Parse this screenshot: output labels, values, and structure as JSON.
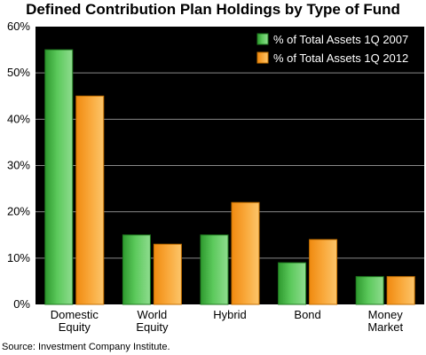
{
  "chart_data": {
    "type": "bar",
    "title": "Defined Contribution Plan Holdings by Type of Fund",
    "categories": [
      [
        "Domestic",
        "Equity"
      ],
      [
        "World",
        "Equity"
      ],
      [
        "Hybrid"
      ],
      [
        "Bond"
      ],
      [
        "Money",
        "Market"
      ]
    ],
    "series": [
      {
        "name": "% of Total Assets 1Q 2007",
        "values": [
          55,
          15,
          15,
          9,
          6
        ],
        "color": "#3fb23f"
      },
      {
        "name": "% of Total Assets 1Q 2012",
        "values": [
          45,
          13,
          22,
          14,
          6
        ],
        "color": "#f7a233"
      }
    ],
    "ylim": [
      0,
      60
    ],
    "yticks": [
      0,
      10,
      20,
      30,
      40,
      50,
      60
    ],
    "ytick_labels": [
      "0%",
      "10%",
      "20%",
      "30%",
      "40%",
      "50%",
      "60%"
    ],
    "grid": true,
    "legend_position": "top-right",
    "plot_background": "#000000",
    "grid_color": "#888888"
  },
  "source": "Source: Investment Company Institute."
}
